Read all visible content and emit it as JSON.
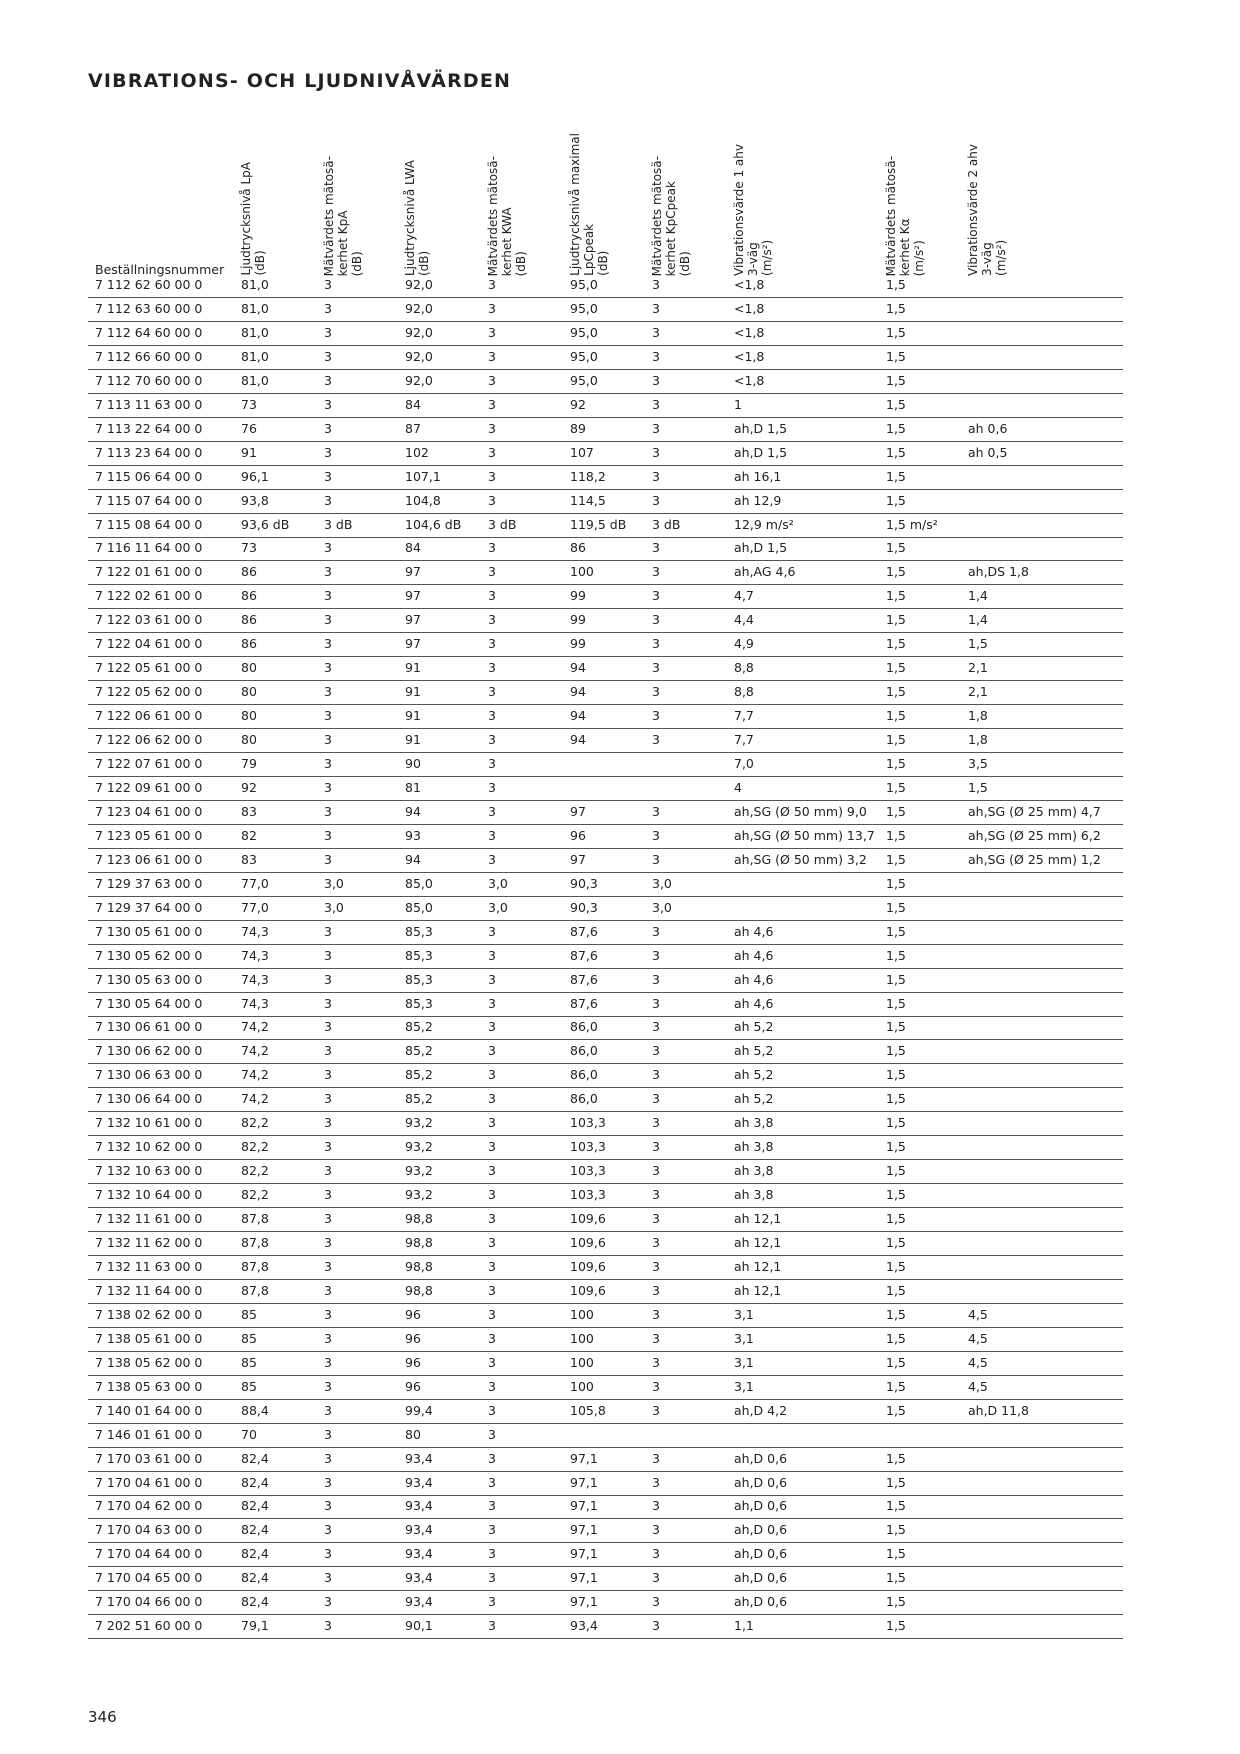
{
  "title": "VIBRATIONS- OCH LJUDNIVÅVÄRDEN",
  "table": {
    "headers": [
      [
        "Beställningsnummer"
      ],
      [
        "Ljudtrycksnivå LpA",
        "(dB)"
      ],
      [
        "Mätvärdets mätosä-",
        "kerhet KpA",
        "(dB)"
      ],
      [
        "Ljudtrycksnivå LWA",
        "(dB)"
      ],
      [
        "Mätvärdets mätosä-",
        "kerhet KWA",
        "(dB)"
      ],
      [
        "Ljudtrycksnivå maximal",
        "LpCpeak",
        "(dB)"
      ],
      [
        "Mätvärdets mätosä-",
        "kerhet KpCpeak",
        "(dB)"
      ],
      [
        "Vibrationsvärde 1 ahv",
        "3-väg",
        "(m/s²)"
      ],
      [
        "Mätvärdets mätosä-",
        "kerhet Kα",
        "(m/s²)"
      ],
      [
        "Vibrationsvärde 2 ahv",
        "3-väg",
        "(m/s²)"
      ]
    ],
    "rows": [
      [
        "7 112 62 60 00 0",
        "81,0",
        "3",
        "92,0",
        "3",
        "95,0",
        "3",
        "<1,8",
        "1,5",
        null
      ],
      [
        "7 112 63 60 00 0",
        "81,0",
        "3",
        "92,0",
        "3",
        "95,0",
        "3",
        "<1,8",
        "1,5",
        null
      ],
      [
        "7 112 64 60 00 0",
        "81,0",
        "3",
        "92,0",
        "3",
        "95,0",
        "3",
        "<1,8",
        "1,5",
        null
      ],
      [
        "7 112 66 60 00 0",
        "81,0",
        "3",
        "92,0",
        "3",
        "95,0",
        "3",
        "<1,8",
        "1,5",
        null
      ],
      [
        "7 112 70 60 00 0",
        "81,0",
        "3",
        "92,0",
        "3",
        "95,0",
        "3",
        "<1,8",
        "1,5",
        null
      ],
      [
        "7 113 11 63 00 0",
        "73",
        "3",
        "84",
        "3",
        "92",
        "3",
        "1",
        "1,5",
        null
      ],
      [
        "7 113 22 64 00 0",
        "76",
        "3",
        "87",
        "3",
        "89",
        "3",
        "ah,D 1,5",
        "1,5",
        "ah 0,6"
      ],
      [
        "7 113 23 64 00 0",
        "91",
        "3",
        "102",
        "3",
        "107",
        "3",
        "ah,D 1,5",
        "1,5",
        "ah 0,5"
      ],
      [
        "7 115 06 64 00 0",
        "96,1",
        "3",
        "107,1",
        "3",
        "118,2",
        "3",
        "ah 16,1",
        "1,5",
        null
      ],
      [
        "7 115 07 64 00 0",
        "93,8",
        "3",
        "104,8",
        "3",
        "114,5",
        "3",
        "ah 12,9",
        "1,5",
        null
      ],
      [
        "7 115 08 64 00 0",
        "93,6 dB",
        "3 dB",
        "104,6 dB",
        "3 dB",
        "119,5 dB",
        "3 dB",
        "12,9 m/s²",
        "1,5 m/s²",
        null
      ],
      [
        "7 116 11 64 00 0",
        "73",
        "3",
        "84",
        "3",
        "86",
        "3",
        "ah,D 1,5",
        "1,5",
        null
      ],
      [
        "7 122 01 61 00 0",
        "86",
        "3",
        "97",
        "3",
        "100",
        "3",
        "ah,AG 4,6",
        "1,5",
        "ah,DS 1,8"
      ],
      [
        "7 122 02 61 00 0",
        "86",
        "3",
        "97",
        "3",
        "99",
        "3",
        "4,7",
        "1,5",
        "1,4"
      ],
      [
        "7 122 03 61 00 0",
        "86",
        "3",
        "97",
        "3",
        "99",
        "3",
        "4,4",
        "1,5",
        "1,4"
      ],
      [
        "7 122 04 61 00 0",
        "86",
        "3",
        "97",
        "3",
        "99",
        "3",
        "4,9",
        "1,5",
        "1,5"
      ],
      [
        "7 122 05 61 00 0",
        "80",
        "3",
        "91",
        "3",
        "94",
        "3",
        "8,8",
        "1,5",
        "2,1"
      ],
      [
        "7 122 05 62 00 0",
        "80",
        "3",
        "91",
        "3",
        "94",
        "3",
        "8,8",
        "1,5",
        "2,1"
      ],
      [
        "7 122 06 61 00 0",
        "80",
        "3",
        "91",
        "3",
        "94",
        "3",
        "7,7",
        "1,5",
        "1,8"
      ],
      [
        "7 122 06 62 00 0",
        "80",
        "3",
        "91",
        "3",
        "94",
        "3",
        "7,7",
        "1,5",
        "1,8"
      ],
      [
        "7 122 07 61 00 0",
        "79",
        "3",
        "90",
        "3",
        null,
        null,
        "7,0",
        "1,5",
        "3,5"
      ],
      [
        "7 122 09 61 00 0",
        "92",
        "3",
        "81",
        "3",
        null,
        null,
        "4",
        "1,5",
        "1,5"
      ],
      [
        "7 123 04 61 00 0",
        "83",
        "3",
        "94",
        "3",
        "97",
        "3",
        "ah,SG (Ø 50 mm) 9,0",
        "1,5",
        "ah,SG (Ø 25 mm) 4,7"
      ],
      [
        "7 123 05 61 00 0",
        "82",
        "3",
        "93",
        "3",
        "96",
        "3",
        "ah,SG (Ø 50 mm) 13,7",
        "1,5",
        "ah,SG (Ø 25 mm) 6,2"
      ],
      [
        "7 123 06 61 00 0",
        "83",
        "3",
        "94",
        "3",
        "97",
        "3",
        "ah,SG (Ø 50 mm) 3,2",
        "1,5",
        "ah,SG (Ø 25 mm) 1,2"
      ],
      [
        "7 129 37 63 00 0",
        "77,0",
        "3,0",
        "85,0",
        "3,0",
        "90,3",
        "3,0",
        null,
        "1,5",
        null
      ],
      [
        "7 129 37 64 00 0",
        "77,0",
        "3,0",
        "85,0",
        "3,0",
        "90,3",
        "3,0",
        null,
        "1,5",
        null
      ],
      [
        "7 130 05 61 00 0",
        "74,3",
        "3",
        "85,3",
        "3",
        "87,6",
        "3",
        "ah 4,6",
        "1,5",
        null
      ],
      [
        "7 130 05 62 00 0",
        "74,3",
        "3",
        "85,3",
        "3",
        "87,6",
        "3",
        "ah 4,6",
        "1,5",
        null
      ],
      [
        "7 130 05 63 00 0",
        "74,3",
        "3",
        "85,3",
        "3",
        "87,6",
        "3",
        "ah 4,6",
        "1,5",
        null
      ],
      [
        "7 130 05 64 00 0",
        "74,3",
        "3",
        "85,3",
        "3",
        "87,6",
        "3",
        "ah 4,6",
        "1,5",
        null
      ],
      [
        "7 130 06 61 00 0",
        "74,2",
        "3",
        "85,2",
        "3",
        "86,0",
        "3",
        "ah 5,2",
        "1,5",
        null
      ],
      [
        "7 130 06 62 00 0",
        "74,2",
        "3",
        "85,2",
        "3",
        "86,0",
        "3",
        "ah 5,2",
        "1,5",
        null
      ],
      [
        "7 130 06 63 00 0",
        "74,2",
        "3",
        "85,2",
        "3",
        "86,0",
        "3",
        "ah 5,2",
        "1,5",
        null
      ],
      [
        "7 130 06 64 00 0",
        "74,2",
        "3",
        "85,2",
        "3",
        "86,0",
        "3",
        "ah 5,2",
        "1,5",
        null
      ],
      [
        "7 132 10 61 00 0",
        "82,2",
        "3",
        "93,2",
        "3",
        "103,3",
        "3",
        "ah 3,8",
        "1,5",
        null
      ],
      [
        "7 132 10 62 00 0",
        "82,2",
        "3",
        "93,2",
        "3",
        "103,3",
        "3",
        "ah 3,8",
        "1,5",
        null
      ],
      [
        "7 132 10 63 00 0",
        "82,2",
        "3",
        "93,2",
        "3",
        "103,3",
        "3",
        "ah 3,8",
        "1,5",
        null
      ],
      [
        "7 132 10 64 00 0",
        "82,2",
        "3",
        "93,2",
        "3",
        "103,3",
        "3",
        "ah 3,8",
        "1,5",
        null
      ],
      [
        "7 132 11 61 00 0",
        "87,8",
        "3",
        "98,8",
        "3",
        "109,6",
        "3",
        "ah 12,1",
        "1,5",
        null
      ],
      [
        "7 132 11 62 00 0",
        "87,8",
        "3",
        "98,8",
        "3",
        "109,6",
        "3",
        "ah 12,1",
        "1,5",
        null
      ],
      [
        "7 132 11 63 00 0",
        "87,8",
        "3",
        "98,8",
        "3",
        "109,6",
        "3",
        "ah 12,1",
        "1,5",
        null
      ],
      [
        "7 132 11 64 00 0",
        "87,8",
        "3",
        "98,8",
        "3",
        "109,6",
        "3",
        "ah 12,1",
        "1,5",
        null
      ],
      [
        "7 138 02 62 00 0",
        "85",
        "3",
        "96",
        "3",
        "100",
        "3",
        "3,1",
        "1,5",
        "4,5"
      ],
      [
        "7 138 05 61 00 0",
        "85",
        "3",
        "96",
        "3",
        "100",
        "3",
        "3,1",
        "1,5",
        "4,5"
      ],
      [
        "7 138 05 62 00 0",
        "85",
        "3",
        "96",
        "3",
        "100",
        "3",
        "3,1",
        "1,5",
        "4,5"
      ],
      [
        "7 138 05 63 00 0",
        "85",
        "3",
        "96",
        "3",
        "100",
        "3",
        "3,1",
        "1,5",
        "4,5"
      ],
      [
        "7 140 01 64 00 0",
        "88,4",
        "3",
        "99,4",
        "3",
        "105,8",
        "3",
        "ah,D 4,2",
        "1,5",
        "ah,D 11,8"
      ],
      [
        "7 146 01 61 00 0",
        "70",
        "3",
        "80",
        "3",
        null,
        null,
        null,
        null,
        null
      ],
      [
        "7 170 03 61 00 0",
        "82,4",
        "3",
        "93,4",
        "3",
        "97,1",
        "3",
        "ah,D 0,6",
        "1,5",
        null
      ],
      [
        "7 170 04 61 00 0",
        "82,4",
        "3",
        "93,4",
        "3",
        "97,1",
        "3",
        "ah,D 0,6",
        "1,5",
        null
      ],
      [
        "7 170 04 62 00 0",
        "82,4",
        "3",
        "93,4",
        "3",
        "97,1",
        "3",
        "ah,D 0,6",
        "1,5",
        null
      ],
      [
        "7 170 04 63 00 0",
        "82,4",
        "3",
        "93,4",
        "3",
        "97,1",
        "3",
        "ah,D 0,6",
        "1,5",
        null
      ],
      [
        "7 170 04 64 00 0",
        "82,4",
        "3",
        "93,4",
        "3",
        "97,1",
        "3",
        "ah,D 0,6",
        "1,5",
        null
      ],
      [
        "7 170 04 65 00 0",
        "82,4",
        "3",
        "93,4",
        "3",
        "97,1",
        "3",
        "ah,D 0,6",
        "1,5",
        null
      ],
      [
        "7 170 04 66 00 0",
        "82,4",
        "3",
        "93,4",
        "3",
        "97,1",
        "3",
        "ah,D 0,6",
        "1,5",
        null
      ],
      [
        "7 202 51 60 00 0",
        "79,1",
        "3",
        "90,1",
        "3",
        "93,4",
        "3",
        "1,1",
        "1,5",
        null
      ]
    ]
  },
  "page_number": "346"
}
